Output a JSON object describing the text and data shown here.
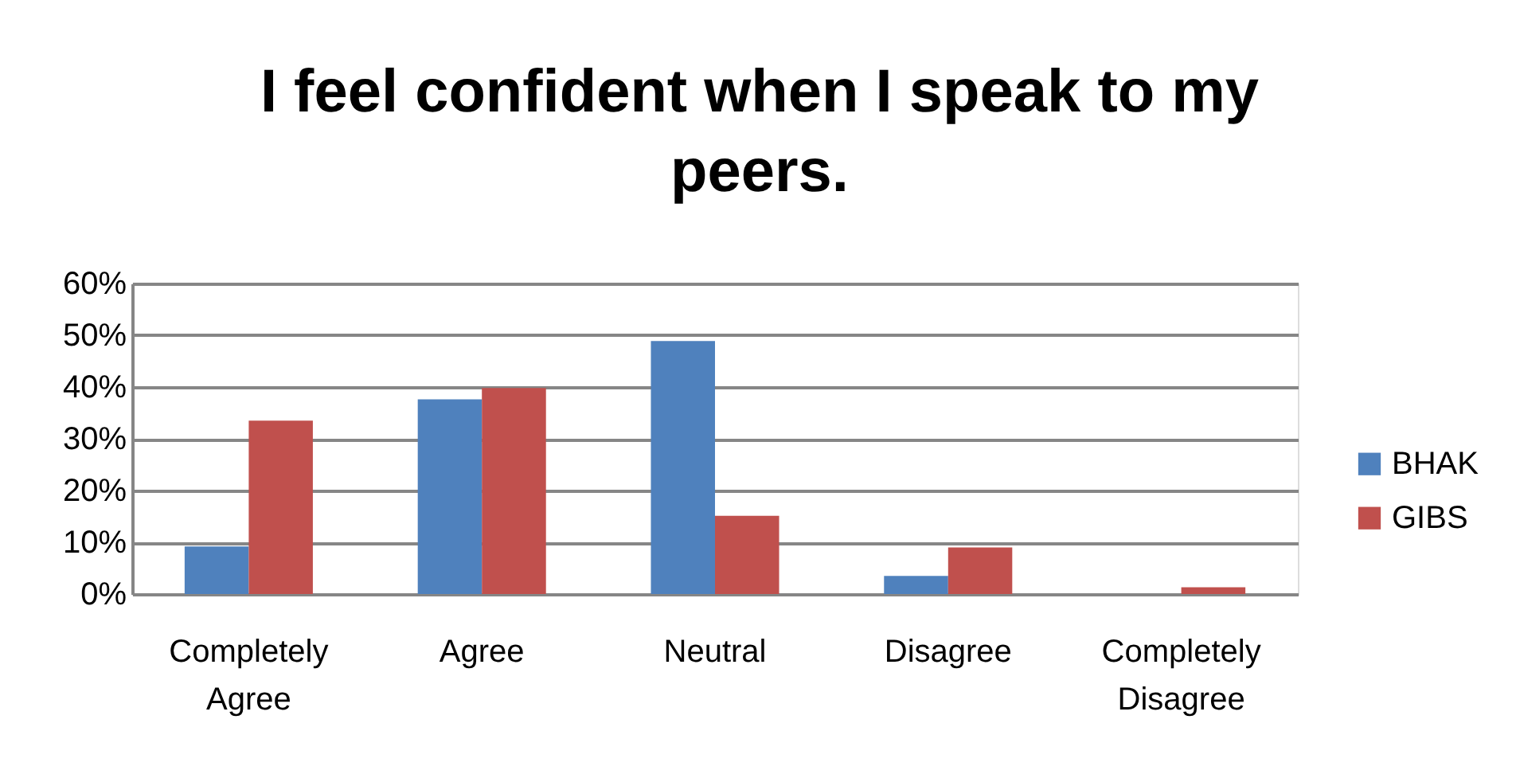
{
  "chart_data": {
    "type": "bar",
    "title": "I feel confident when I speak to my peers.",
    "categories": [
      "Completely Agree",
      "Agree",
      "Neutral",
      "Disagree",
      "Completely Disagree"
    ],
    "series": [
      {
        "name": "BHAK",
        "color": "#4f81bd",
        "values": [
          9.2,
          37.6,
          48.9,
          3.5,
          0
        ]
      },
      {
        "name": "GIBS",
        "color": "#c0504d",
        "values": [
          33.5,
          39.8,
          15.1,
          9.0,
          1.3
        ]
      }
    ],
    "ylim": [
      0,
      60
    ],
    "yticks": [
      {
        "value": 0,
        "label": "0%"
      },
      {
        "value": 10,
        "label": "10%"
      },
      {
        "value": 20,
        "label": "20%"
      },
      {
        "value": 30,
        "label": "30%"
      },
      {
        "value": 40,
        "label": "40%"
      },
      {
        "value": 50,
        "label": "50%"
      },
      {
        "value": 60,
        "label": "60%"
      }
    ],
    "grid": "y",
    "legend": "right"
  }
}
